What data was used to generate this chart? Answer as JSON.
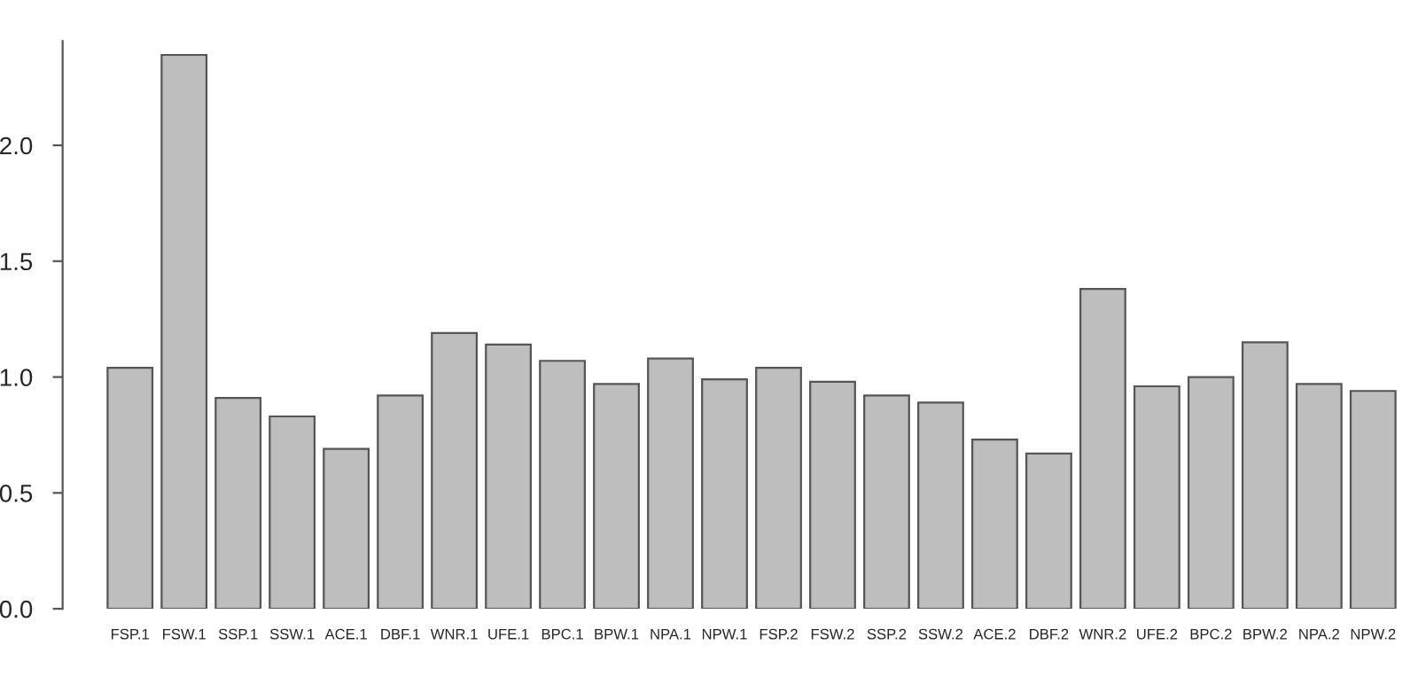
{
  "chart_data": {
    "type": "bar",
    "categories": [
      "FSP.1",
      "FSW.1",
      "SSP.1",
      "SSW.1",
      "ACE.1",
      "DBF.1",
      "WNR.1",
      "UFE.1",
      "BPC.1",
      "BPW.1",
      "NPA.1",
      "NPW.1",
      "FSP.2",
      "FSW.2",
      "SSP.2",
      "SSW.2",
      "ACE.2",
      "DBF.2",
      "WNR.2",
      "UFE.2",
      "BPC.2",
      "BPW.2",
      "NPA.2",
      "NPW.2"
    ],
    "values": [
      1.04,
      2.39,
      0.91,
      0.83,
      0.69,
      0.92,
      1.19,
      1.14,
      1.07,
      0.97,
      1.08,
      0.99,
      1.04,
      0.98,
      0.92,
      0.89,
      0.73,
      0.67,
      1.38,
      0.96,
      1.0,
      1.15,
      0.97,
      0.94
    ],
    "color": "#bebebe",
    "ylim": [
      0,
      2.45
    ],
    "yticks": [
      {
        "value": 0,
        "label": "0.0"
      },
      {
        "value": 0.5,
        "label": "0.5"
      },
      {
        "value": 1,
        "label": "1.0"
      },
      {
        "value": 1.5,
        "label": "1.5"
      },
      {
        "value": 2,
        "label": "2.0"
      }
    ],
    "grid": false
  }
}
